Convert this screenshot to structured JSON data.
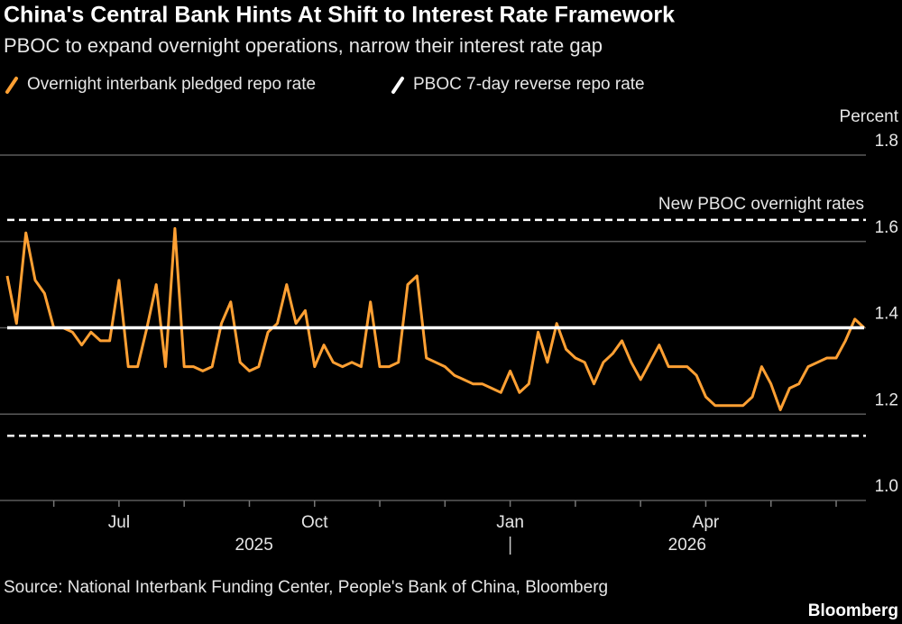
{
  "chart_data": {
    "type": "line",
    "title": "China's Central Bank Hints At Shift to Interest Rate Framework",
    "subtitle": "PBOC to expand overnight operations, narrow their interest rate gap",
    "ylabel": "Percent",
    "source": "Source: National Interbank Funding Center, People's Bank of China, Bloomberg",
    "credit": "Bloomberg",
    "x": [
      "2025-05",
      "2025-05",
      "2025-05",
      "2025-05",
      "2025-05",
      "2025-06",
      "2025-06",
      "2025-06",
      "2025-06",
      "2025-06",
      "2025-06",
      "2025-06",
      "2025-07",
      "2025-07",
      "2025-07",
      "2025-07",
      "2025-07",
      "2025-07",
      "2025-07",
      "2025-08",
      "2025-08",
      "2025-08",
      "2025-08",
      "2025-08",
      "2025-08",
      "2025-08",
      "2025-09",
      "2025-09",
      "2025-09",
      "2025-09",
      "2025-09",
      "2025-09",
      "2025-09",
      "2025-10",
      "2025-10",
      "2025-10",
      "2025-10",
      "2025-10",
      "2025-10",
      "2025-10",
      "2025-11",
      "2025-11",
      "2025-11",
      "2025-11",
      "2025-11",
      "2025-11",
      "2025-11",
      "2025-12",
      "2025-12",
      "2025-12",
      "2025-12",
      "2025-12",
      "2025-12",
      "2025-12",
      "2026-01",
      "2026-01",
      "2026-01",
      "2026-01",
      "2026-01",
      "2026-01",
      "2026-01",
      "2026-02",
      "2026-02",
      "2026-02",
      "2026-02",
      "2026-02",
      "2026-02",
      "2026-02",
      "2026-03",
      "2026-03",
      "2026-03",
      "2026-03",
      "2026-03",
      "2026-03",
      "2026-03",
      "2026-04",
      "2026-04",
      "2026-04",
      "2026-04",
      "2026-04",
      "2026-04",
      "2026-04",
      "2026-05",
      "2026-05",
      "2026-05",
      "2026-05",
      "2026-05",
      "2026-05",
      "2026-05",
      "2026-06",
      "2026-06",
      "2026-06",
      "2026-06"
    ],
    "series": [
      {
        "name": "Overnight interbank pledged repo rate",
        "color": "#ffa033",
        "values": [
          1.52,
          1.41,
          1.62,
          1.51,
          1.48,
          1.4,
          1.4,
          1.39,
          1.36,
          1.39,
          1.37,
          1.37,
          1.51,
          1.31,
          1.31,
          1.4,
          1.5,
          1.31,
          1.63,
          1.31,
          1.31,
          1.3,
          1.31,
          1.41,
          1.46,
          1.32,
          1.3,
          1.31,
          1.39,
          1.41,
          1.5,
          1.41,
          1.44,
          1.31,
          1.36,
          1.32,
          1.31,
          1.32,
          1.31,
          1.46,
          1.31,
          1.31,
          1.32,
          1.5,
          1.52,
          1.33,
          1.32,
          1.31,
          1.29,
          1.28,
          1.27,
          1.27,
          1.26,
          1.25,
          1.3,
          1.25,
          1.27,
          1.39,
          1.32,
          1.41,
          1.35,
          1.33,
          1.32,
          1.27,
          1.32,
          1.34,
          1.37,
          1.32,
          1.28,
          1.32,
          1.36,
          1.31,
          1.31,
          1.31,
          1.29,
          1.24,
          1.22,
          1.22,
          1.22,
          1.22,
          1.24,
          1.31,
          1.27,
          1.21,
          1.26,
          1.27,
          1.31,
          1.32,
          1.33,
          1.33,
          1.37,
          1.42,
          1.4
        ]
      },
      {
        "name": "PBOC 7-day reverse repo rate",
        "color": "#ffffff",
        "values": [
          1.4,
          1.4,
          1.4,
          1.4,
          1.4,
          1.4,
          1.4,
          1.4,
          1.4,
          1.4,
          1.4,
          1.4,
          1.4,
          1.4,
          1.4,
          1.4,
          1.4,
          1.4,
          1.4,
          1.4,
          1.4,
          1.4,
          1.4,
          1.4,
          1.4,
          1.4,
          1.4,
          1.4,
          1.4,
          1.4,
          1.4,
          1.4,
          1.4,
          1.4,
          1.4,
          1.4,
          1.4,
          1.4,
          1.4,
          1.4,
          1.4,
          1.4,
          1.4,
          1.4,
          1.4,
          1.4,
          1.4,
          1.4,
          1.4,
          1.4,
          1.4,
          1.4,
          1.4,
          1.4,
          1.4,
          1.4,
          1.4,
          1.4,
          1.4,
          1.4,
          1.4,
          1.4,
          1.4,
          1.4,
          1.4,
          1.4,
          1.4,
          1.4,
          1.4,
          1.4,
          1.4,
          1.4,
          1.4,
          1.4,
          1.4,
          1.4,
          1.4,
          1.4,
          1.4,
          1.4,
          1.4,
          1.4,
          1.4,
          1.4,
          1.4,
          1.4,
          1.4,
          1.4,
          1.4,
          1.4,
          1.4,
          1.4,
          1.4
        ]
      }
    ],
    "annotation": {
      "text": "New PBOC overnight rates",
      "values": [
        1.65,
        1.15
      ]
    },
    "ylim": [
      1.0,
      1.8
    ],
    "yticks": [
      {
        "value": 1.0,
        "label": "1.0"
      },
      1.2,
      1.4,
      1.6,
      1.8
    ],
    "xticks": [
      {
        "value": "2025-07",
        "label": "Jul"
      },
      {
        "value": "2025-10",
        "label": "Oct"
      },
      {
        "value": "2026-01",
        "label": "Jan"
      },
      {
        "value": "2026-04",
        "label": "Apr"
      }
    ],
    "years": [
      "2025",
      "2026"
    ],
    "grid": true
  }
}
